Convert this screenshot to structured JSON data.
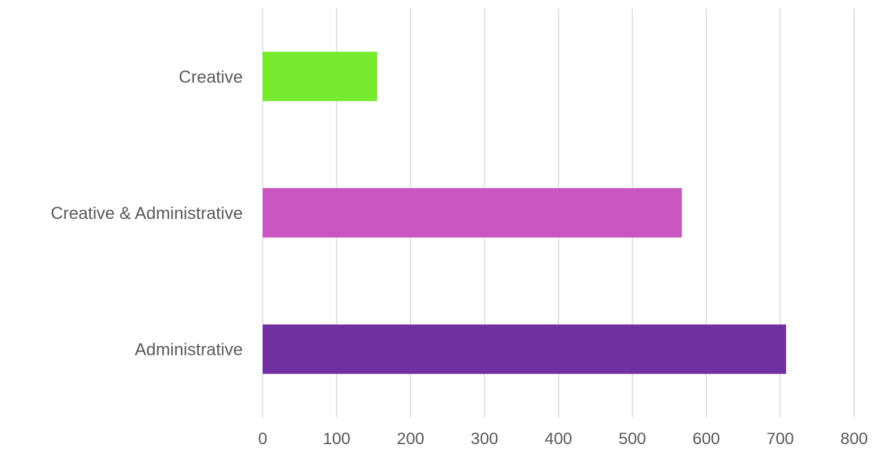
{
  "chart_data": {
    "type": "bar",
    "orientation": "horizontal",
    "title": "",
    "xlabel": "",
    "ylabel": "",
    "categories": [
      "Administrative",
      "Creative & Administrative",
      "Creative"
    ],
    "values": [
      708,
      567,
      155
    ],
    "bar_colors": [
      "#7030a0",
      "#c855c0",
      "#76eb2e"
    ],
    "xlim": [
      0,
      800
    ],
    "x_ticks": [
      0,
      100,
      200,
      300,
      400,
      500,
      600,
      700,
      800
    ],
    "grid": true,
    "legend": "none"
  }
}
